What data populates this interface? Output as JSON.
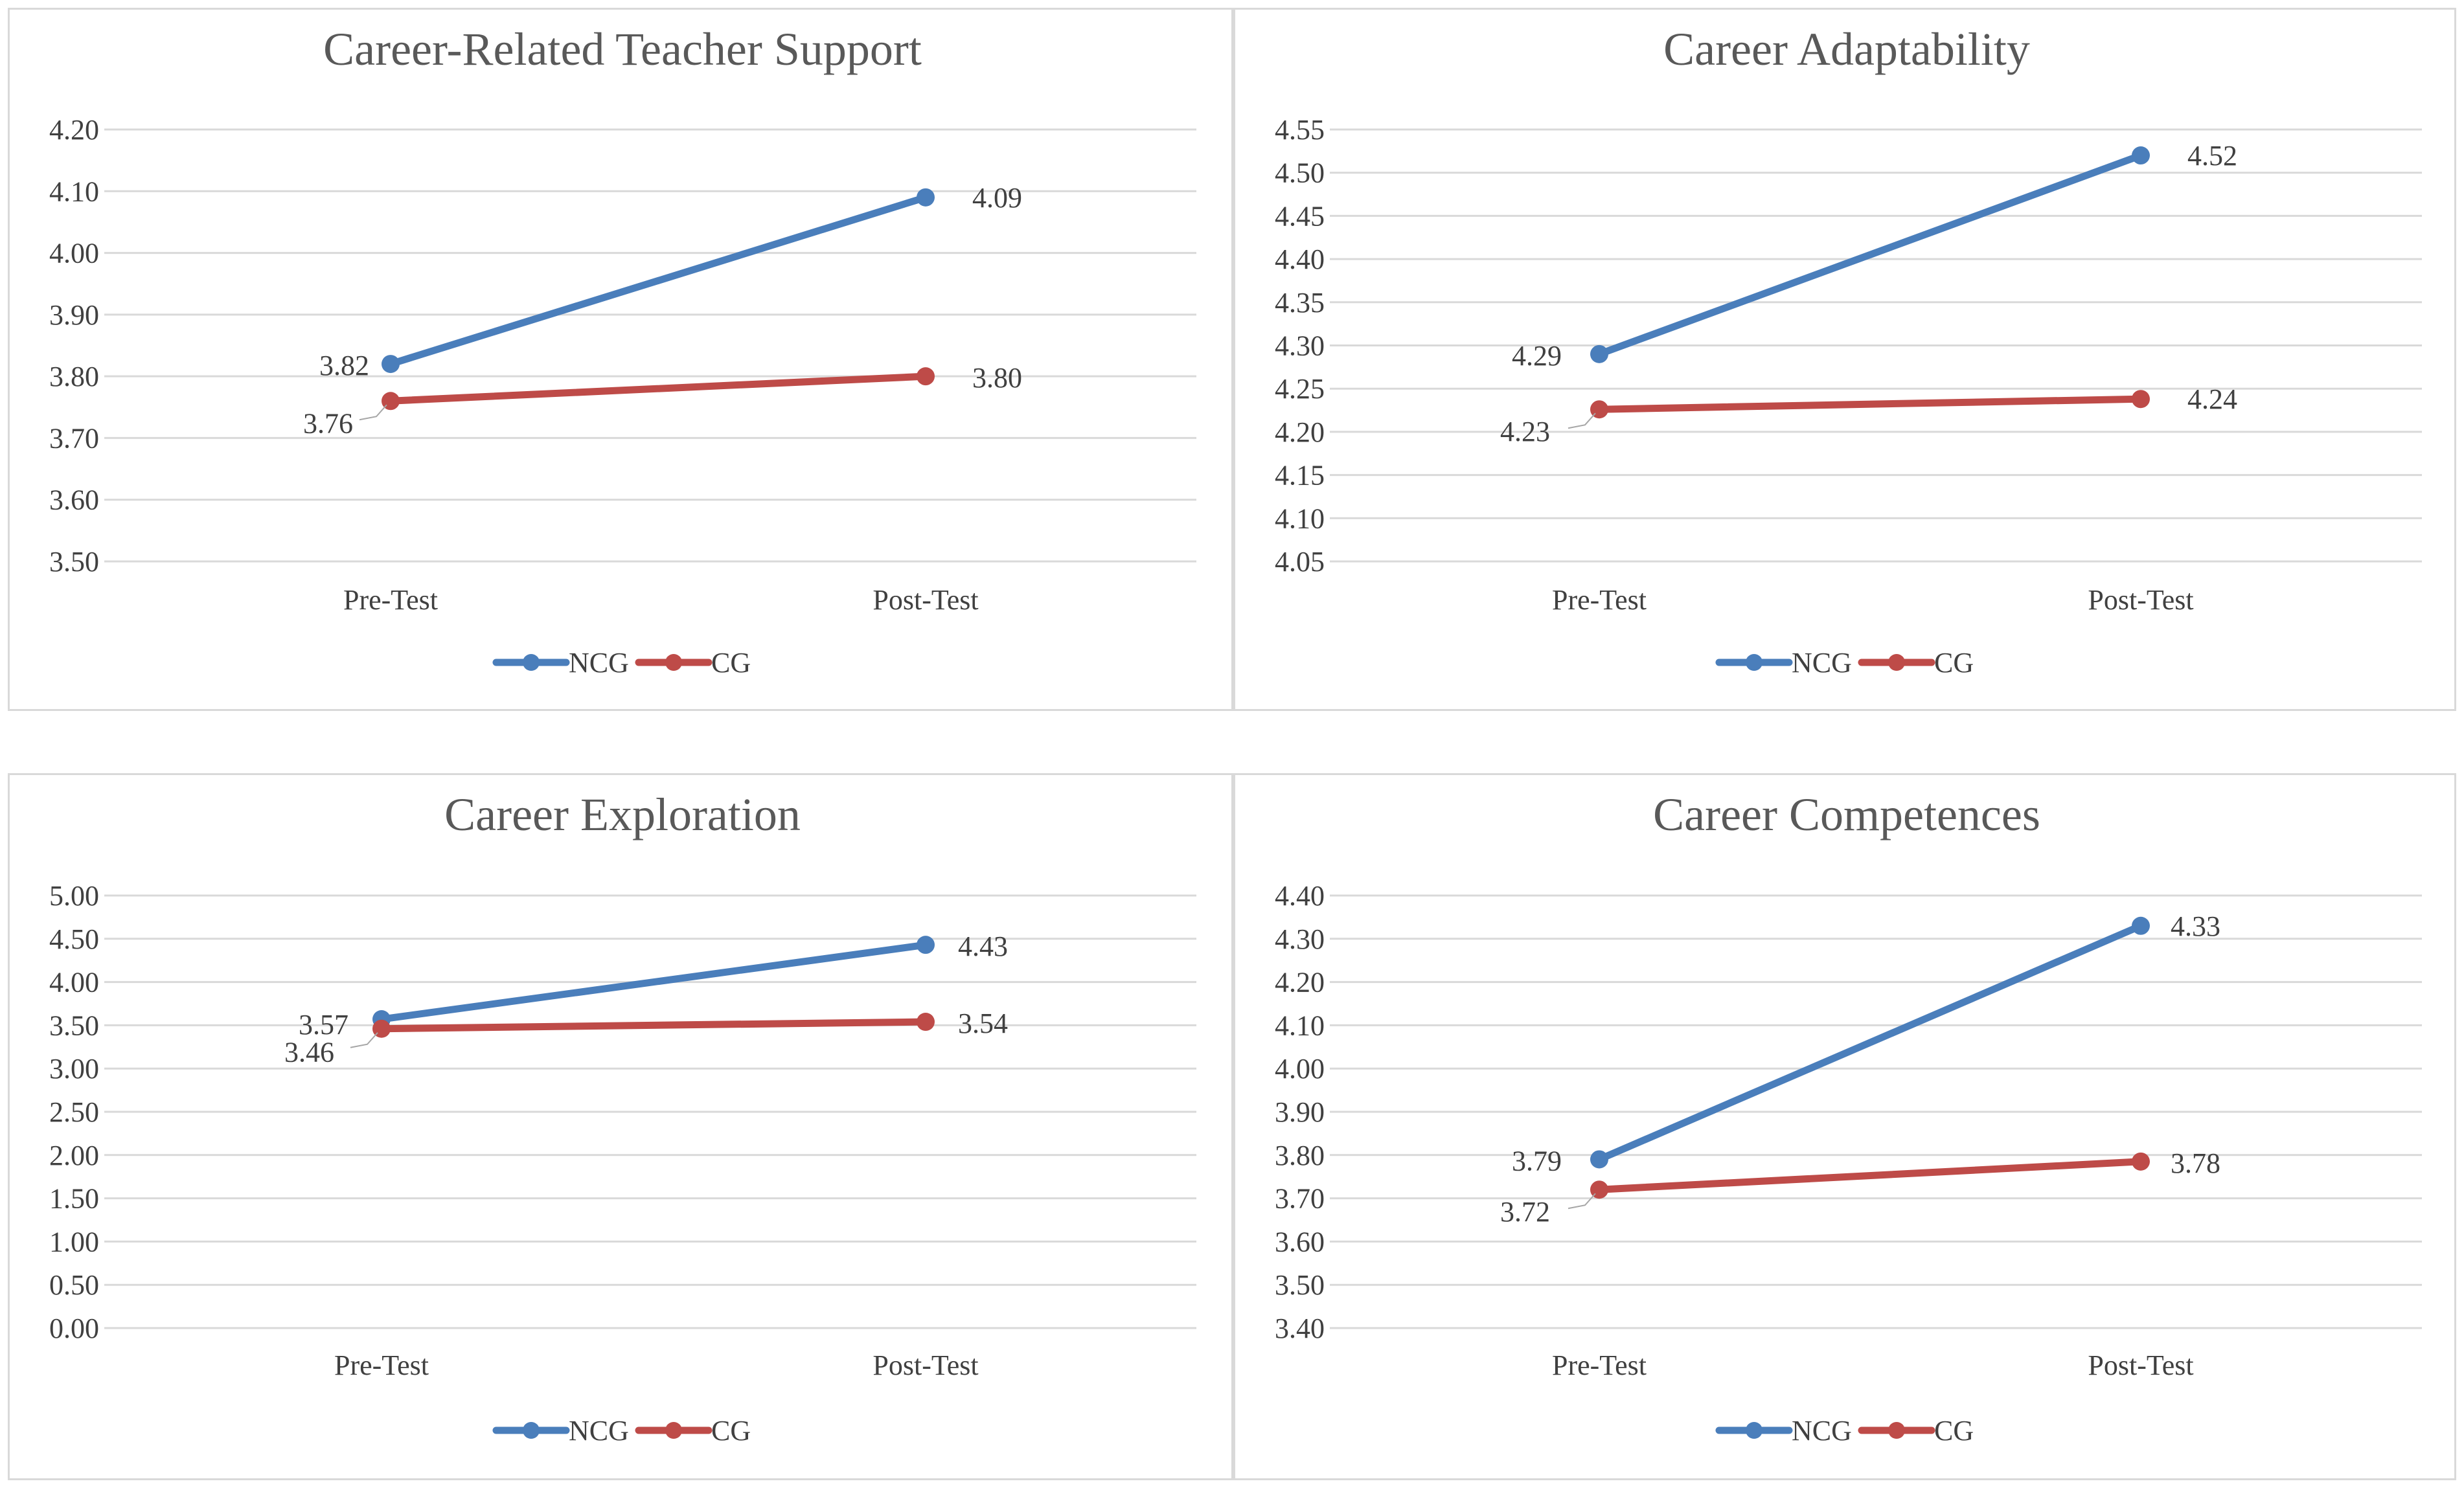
{
  "chart_data": [
    {
      "type": "line",
      "title": "Career-Related Teacher Support",
      "categories": [
        "Pre-Test",
        "Post-Test"
      ],
      "ylim": [
        3.5,
        4.2
      ],
      "yticks": [
        "3.50",
        "3.60",
        "3.70",
        "3.80",
        "3.90",
        "4.00",
        "4.10",
        "4.20"
      ],
      "grid": true,
      "legend_position": "bottom",
      "series": [
        {
          "name": "NCG",
          "color": "#4a7ebb",
          "values": [
            3.82,
            4.09
          ],
          "labels": [
            "3.82",
            "4.09"
          ]
        },
        {
          "name": "CG",
          "color": "#be4b48",
          "values": [
            3.76,
            3.8
          ],
          "labels": [
            "3.76",
            "3.80"
          ]
        }
      ]
    },
    {
      "type": "line",
      "title": "Career Adaptability",
      "categories": [
        "Pre-Test",
        "Post-Test"
      ],
      "ylim": [
        4.05,
        4.55
      ],
      "yticks": [
        "4.05",
        "4.10",
        "4.15",
        "4.20",
        "4.25",
        "4.30",
        "4.35",
        "4.40",
        "4.45",
        "4.50",
        "4.55"
      ],
      "grid": true,
      "legend_position": "bottom",
      "series": [
        {
          "name": "NCG",
          "color": "#4a7ebb",
          "values": [
            4.29,
            4.52
          ],
          "labels": [
            "4.29",
            "4.52"
          ]
        },
        {
          "name": "CG",
          "color": "#be4b48",
          "values": [
            4.226,
            4.238
          ],
          "labels": [
            "4.23",
            "4.24"
          ]
        }
      ]
    },
    {
      "type": "line",
      "title": "Career Exploration",
      "categories": [
        "Pre-Test",
        "Post-Test"
      ],
      "ylim": [
        0.0,
        5.0
      ],
      "yticks": [
        "0.00",
        "0.50",
        "1.00",
        "1.50",
        "2.00",
        "2.50",
        "3.00",
        "3.50",
        "4.00",
        "4.50",
        "5.00"
      ],
      "grid": true,
      "legend_position": "bottom",
      "series": [
        {
          "name": "NCG",
          "color": "#4a7ebb",
          "values": [
            3.57,
            4.43
          ],
          "labels": [
            "3.57",
            "4.43"
          ]
        },
        {
          "name": "CG",
          "color": "#be4b48",
          "values": [
            3.46,
            3.54
          ],
          "labels": [
            "3.46",
            "3.54"
          ]
        }
      ]
    },
    {
      "type": "line",
      "title": "Career Competences",
      "categories": [
        "Pre-Test",
        "Post-Test"
      ],
      "ylim": [
        3.4,
        4.4
      ],
      "yticks": [
        "3.40",
        "3.50",
        "3.60",
        "3.70",
        "3.80",
        "3.90",
        "4.00",
        "4.10",
        "4.20",
        "4.30",
        "4.40"
      ],
      "grid": true,
      "legend_position": "bottom",
      "series": [
        {
          "name": "NCG",
          "color": "#4a7ebb",
          "values": [
            3.79,
            4.33
          ],
          "labels": [
            "3.79",
            "4.33"
          ]
        },
        {
          "name": "CG",
          "color": "#be4b48",
          "values": [
            3.72,
            3.785
          ],
          "labels": [
            "3.72",
            "3.78"
          ]
        }
      ]
    }
  ]
}
